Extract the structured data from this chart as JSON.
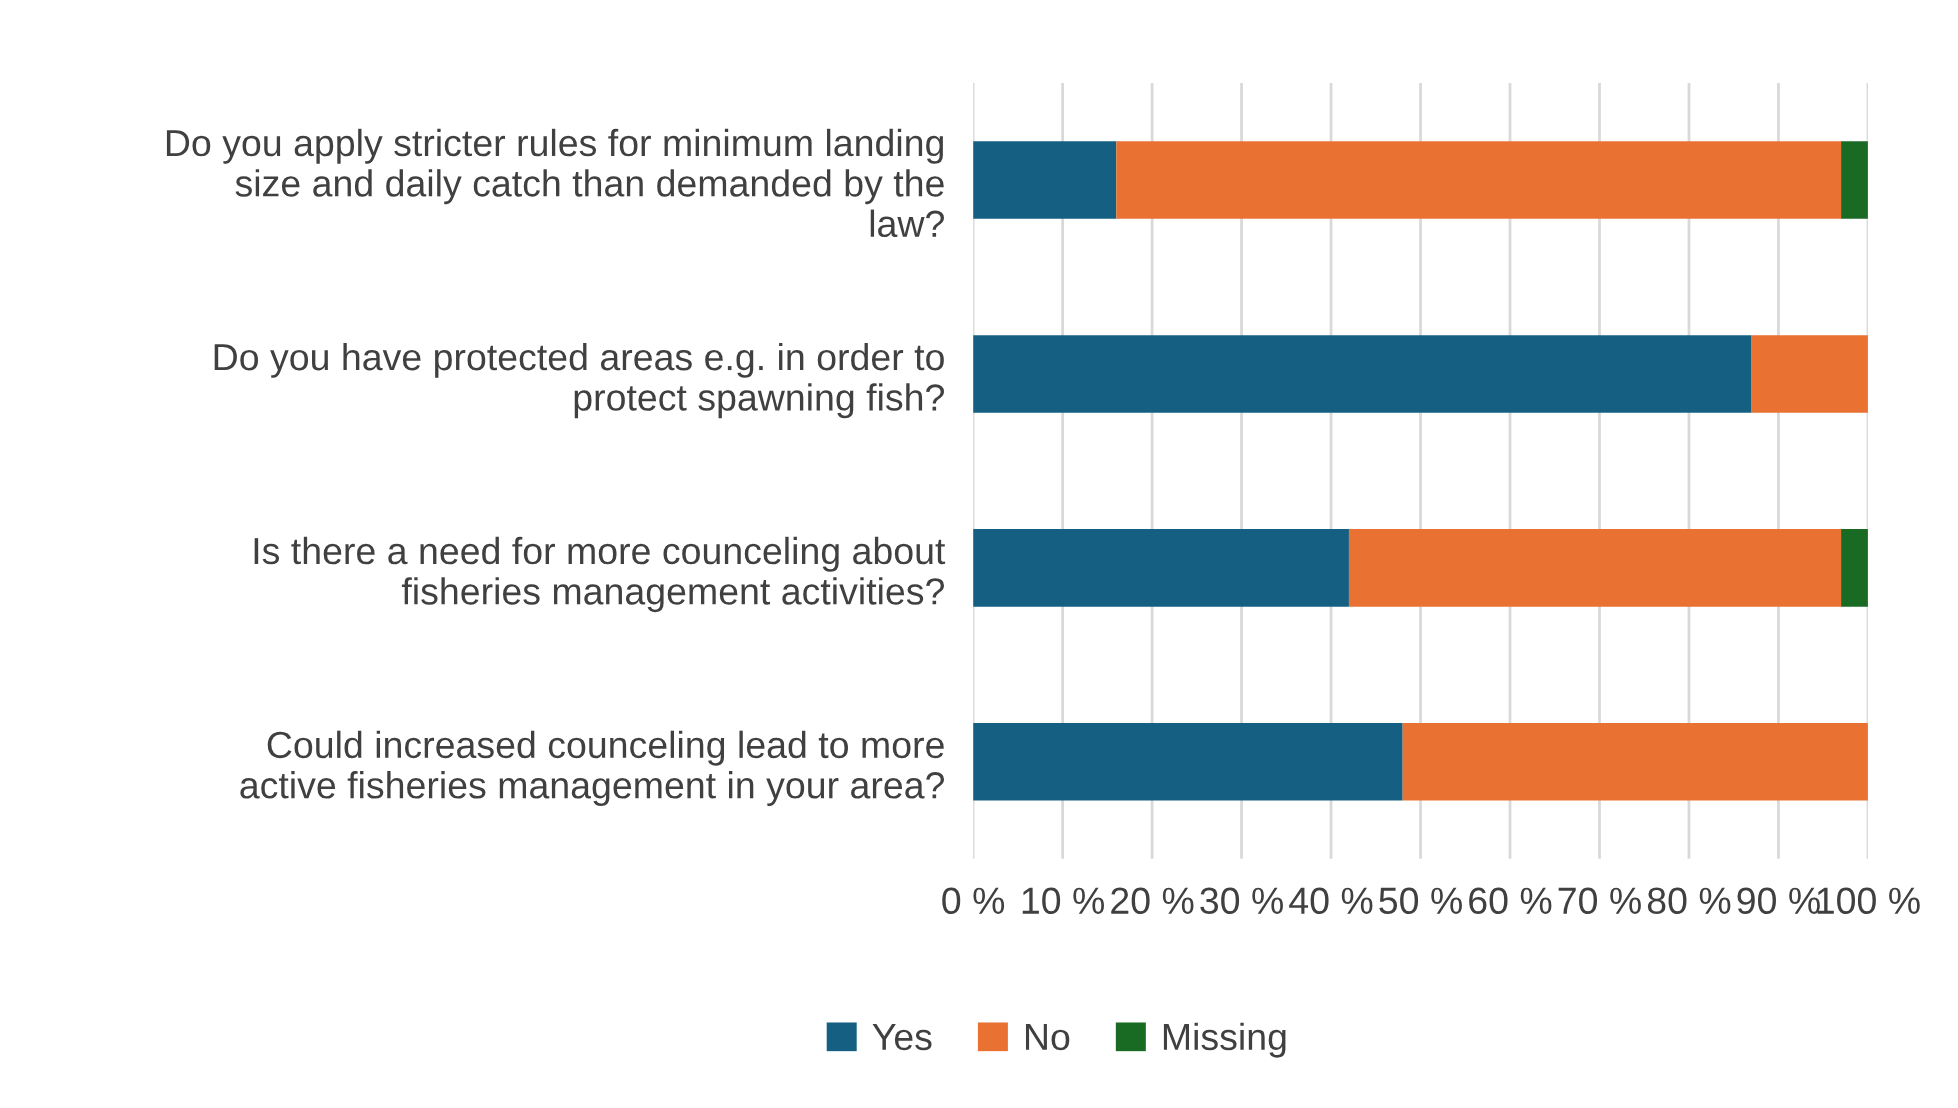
{
  "chart_data": {
    "type": "bar",
    "orientation": "horizontal",
    "stacked": true,
    "categories": [
      "Do you apply stricter rules for minimum landing\nsize and daily catch than demanded by the\nlaw?",
      "Do you have protected areas e.g. in order to\nprotect spawning fish?",
      "Is there a need for more counceling about\nfisheries management activities?",
      "Could increased counceling lead to more\nactive fisheries management in your area?"
    ],
    "series": [
      {
        "name": "Yes",
        "color": "#156082",
        "values": [
          16,
          87,
          42,
          48
        ]
      },
      {
        "name": "No",
        "color": "#e97132",
        "values": [
          81,
          13,
          55,
          52
        ]
      },
      {
        "name": "Missing",
        "color": "#196b24",
        "values": [
          3,
          null,
          3,
          null
        ]
      }
    ],
    "xlim": [
      0,
      100
    ],
    "xticks": [
      {
        "value": 0,
        "label": "0 %"
      },
      {
        "value": 10,
        "label": "10 %"
      },
      {
        "value": 20,
        "label": "20 %"
      },
      {
        "value": 30,
        "label": "30 %"
      },
      {
        "value": 40,
        "label": "40 %"
      },
      {
        "value": 50,
        "label": "50 %"
      },
      {
        "value": 60,
        "label": "60 %"
      },
      {
        "value": 70,
        "label": "70 %"
      },
      {
        "value": 80,
        "label": "80 %"
      },
      {
        "value": 90,
        "label": "90 %"
      },
      {
        "value": 100,
        "label": "100 %"
      }
    ],
    "grid": "x",
    "legend": "bottom"
  }
}
